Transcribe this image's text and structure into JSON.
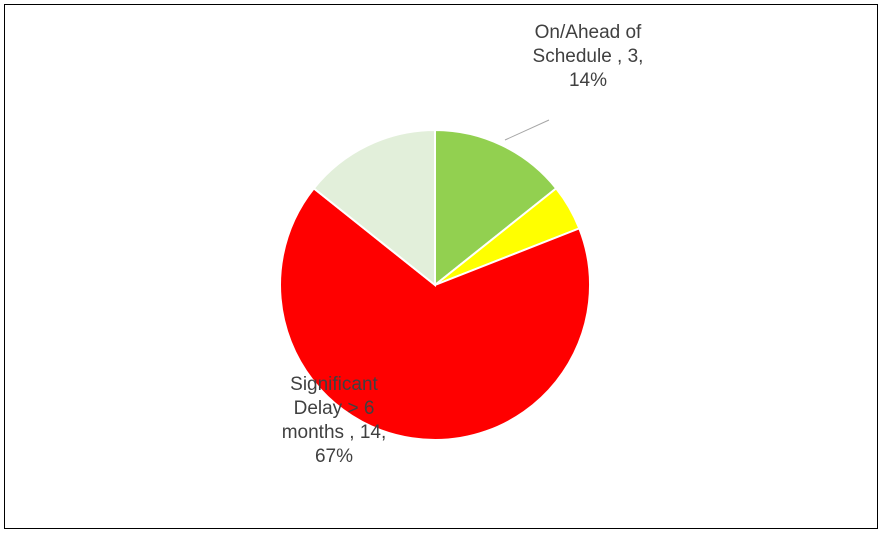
{
  "chart_data": {
    "type": "pie",
    "title": "",
    "slices": [
      {
        "label": "On/Ahead of Schedule",
        "value": 3,
        "percent": "14%",
        "color": "#92d050",
        "label_lines": [
          "On/Ahead of",
          "Schedule , 3,",
          "14%"
        ]
      },
      {
        "label": "",
        "value": 1,
        "percent": "",
        "color": "#ffff00",
        "label_lines": []
      },
      {
        "label": "Significant Delay > 6 months",
        "value": 14,
        "percent": "67%",
        "color": "#ff0000",
        "label_lines": [
          "Significant",
          "Delay > 6",
          "months , 14,",
          "67%"
        ]
      },
      {
        "label": "",
        "value": 3,
        "percent": "",
        "color": "#e2efda",
        "label_lines": []
      }
    ],
    "start_angle_deg": 0,
    "direction": "clockwise",
    "legend": "none"
  }
}
